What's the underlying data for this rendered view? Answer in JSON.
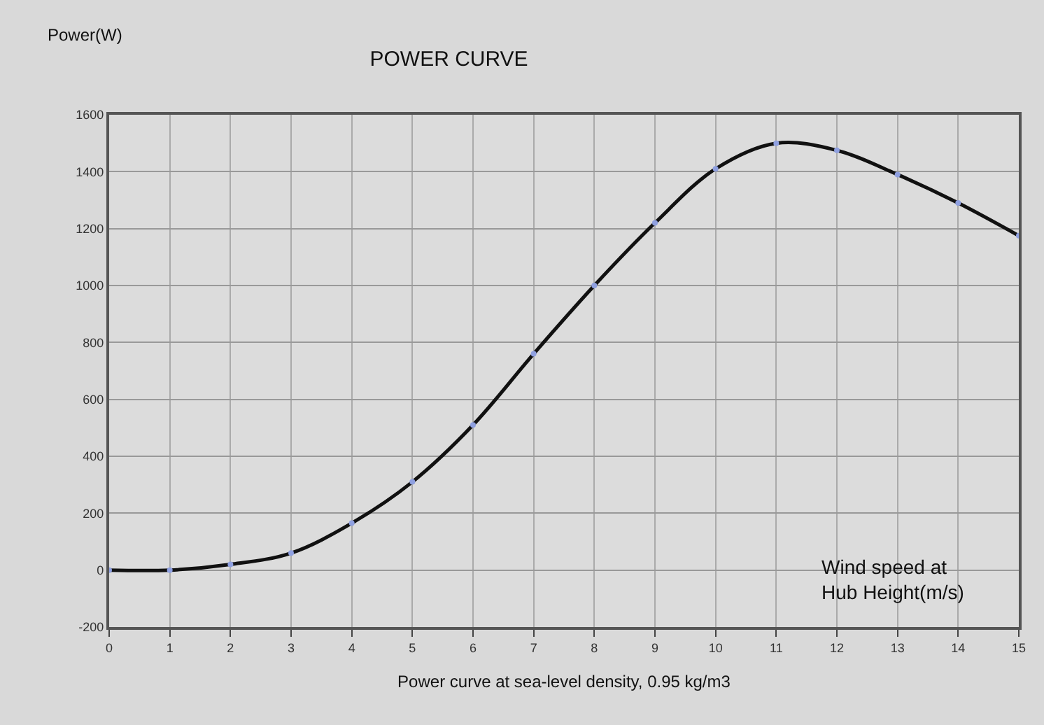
{
  "chart_data": {
    "type": "line",
    "title": "POWER CURVE",
    "xlabel": "Power curve at sea-level density, 0.95 kg/m3",
    "ylabel": "Power(W)",
    "annotations": [
      "Wind speed at\nHub Height(m/s)"
    ],
    "x": [
      0,
      1,
      2,
      3,
      4,
      5,
      6,
      7,
      8,
      9,
      10,
      11,
      12,
      13,
      14,
      15
    ],
    "series": [
      {
        "color": "#111111",
        "values": [
          0,
          0,
          20,
          60,
          165,
          310,
          510,
          760,
          1000,
          1220,
          1410,
          1500,
          1475,
          1390,
          1290,
          1175
        ]
      }
    ],
    "xlim": [
      0,
      15
    ],
    "xticks": [
      0,
      1,
      2,
      3,
      4,
      5,
      6,
      7,
      8,
      9,
      10,
      11,
      12,
      13,
      14,
      15
    ],
    "ylim": [
      -200,
      1600
    ],
    "yticks": [
      -200,
      0,
      200,
      400,
      600,
      800,
      1000,
      1200,
      1400,
      1600
    ],
    "grid": true,
    "marker": "circle",
    "line_style": "solid"
  }
}
